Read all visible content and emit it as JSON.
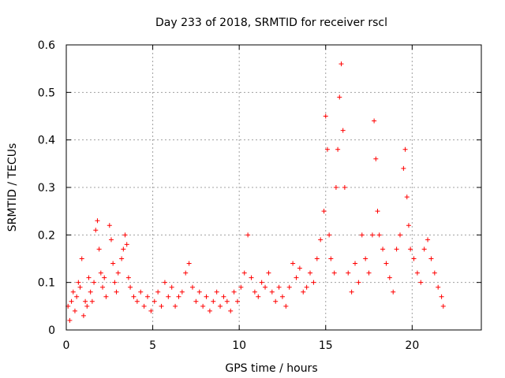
{
  "chart_data": {
    "type": "scatter",
    "title": "Day 233 of 2018, SRMTID for receiver rscl",
    "xlabel": "GPS time / hours",
    "ylabel": "SRMTID / TECUs",
    "xlim": [
      0,
      24
    ],
    "ylim": [
      0,
      0.6
    ],
    "xticks": [
      0,
      5,
      10,
      15,
      20
    ],
    "yticks": [
      0,
      0.1,
      0.2,
      0.3,
      0.4,
      0.5,
      0.6
    ],
    "xtick_labels": [
      "0",
      "5",
      "10",
      "15",
      "20"
    ],
    "ytick_labels": [
      "0",
      "0.1",
      "0.2",
      "0.3",
      "0.4",
      "0.5",
      "0.6"
    ],
    "grid": true,
    "marker": "+",
    "color": "#ff0000",
    "series": [
      {
        "name": "SRMTID",
        "points": [
          [
            0.1,
            0.05
          ],
          [
            0.2,
            0.02
          ],
          [
            0.3,
            0.06
          ],
          [
            0.4,
            0.08
          ],
          [
            0.5,
            0.04
          ],
          [
            0.6,
            0.07
          ],
          [
            0.7,
            0.1
          ],
          [
            0.8,
            0.09
          ],
          [
            0.9,
            0.15
          ],
          [
            1.0,
            0.03
          ],
          [
            1.1,
            0.06
          ],
          [
            1.2,
            0.05
          ],
          [
            1.3,
            0.11
          ],
          [
            1.4,
            0.08
          ],
          [
            1.5,
            0.06
          ],
          [
            1.6,
            0.1
          ],
          [
            1.7,
            0.21
          ],
          [
            1.8,
            0.23
          ],
          [
            1.9,
            0.17
          ],
          [
            2.0,
            0.12
          ],
          [
            2.1,
            0.09
          ],
          [
            2.2,
            0.11
          ],
          [
            2.3,
            0.07
          ],
          [
            2.5,
            0.22
          ],
          [
            2.6,
            0.19
          ],
          [
            2.7,
            0.14
          ],
          [
            2.8,
            0.1
          ],
          [
            2.9,
            0.08
          ],
          [
            3.0,
            0.12
          ],
          [
            3.2,
            0.15
          ],
          [
            3.3,
            0.17
          ],
          [
            3.4,
            0.2
          ],
          [
            3.5,
            0.18
          ],
          [
            3.6,
            0.11
          ],
          [
            3.7,
            0.09
          ],
          [
            3.9,
            0.07
          ],
          [
            4.1,
            0.06
          ],
          [
            4.3,
            0.08
          ],
          [
            4.5,
            0.05
          ],
          [
            4.7,
            0.07
          ],
          [
            4.9,
            0.04
          ],
          [
            5.1,
            0.06
          ],
          [
            5.3,
            0.08
          ],
          [
            5.5,
            0.05
          ],
          [
            5.7,
            0.1
          ],
          [
            5.9,
            0.07
          ],
          [
            6.1,
            0.09
          ],
          [
            6.3,
            0.05
          ],
          [
            6.5,
            0.07
          ],
          [
            6.7,
            0.08
          ],
          [
            6.9,
            0.12
          ],
          [
            7.1,
            0.14
          ],
          [
            7.3,
            0.09
          ],
          [
            7.5,
            0.06
          ],
          [
            7.7,
            0.08
          ],
          [
            7.9,
            0.05
          ],
          [
            8.1,
            0.07
          ],
          [
            8.3,
            0.04
          ],
          [
            8.5,
            0.06
          ],
          [
            8.7,
            0.08
          ],
          [
            8.9,
            0.05
          ],
          [
            9.1,
            0.07
          ],
          [
            9.3,
            0.06
          ],
          [
            9.5,
            0.04
          ],
          [
            9.7,
            0.08
          ],
          [
            9.9,
            0.06
          ],
          [
            10.1,
            0.09
          ],
          [
            10.3,
            0.12
          ],
          [
            10.5,
            0.2
          ],
          [
            10.7,
            0.11
          ],
          [
            10.9,
            0.08
          ],
          [
            11.1,
            0.07
          ],
          [
            11.3,
            0.1
          ],
          [
            11.5,
            0.09
          ],
          [
            11.7,
            0.12
          ],
          [
            11.9,
            0.08
          ],
          [
            12.1,
            0.06
          ],
          [
            12.3,
            0.09
          ],
          [
            12.5,
            0.07
          ],
          [
            12.7,
            0.05
          ],
          [
            12.9,
            0.09
          ],
          [
            13.1,
            0.14
          ],
          [
            13.3,
            0.11
          ],
          [
            13.5,
            0.13
          ],
          [
            13.7,
            0.08
          ],
          [
            13.9,
            0.09
          ],
          [
            14.1,
            0.12
          ],
          [
            14.3,
            0.1
          ],
          [
            14.5,
            0.15
          ],
          [
            14.7,
            0.19
          ],
          [
            14.9,
            0.25
          ],
          [
            15.0,
            0.45
          ],
          [
            15.1,
            0.38
          ],
          [
            15.2,
            0.2
          ],
          [
            15.3,
            0.15
          ],
          [
            15.5,
            0.12
          ],
          [
            15.6,
            0.3
          ],
          [
            15.7,
            0.38
          ],
          [
            15.8,
            0.49
          ],
          [
            15.9,
            0.56
          ],
          [
            16.0,
            0.42
          ],
          [
            16.1,
            0.3
          ],
          [
            16.3,
            0.12
          ],
          [
            16.5,
            0.08
          ],
          [
            16.7,
            0.14
          ],
          [
            16.9,
            0.1
          ],
          [
            17.1,
            0.2
          ],
          [
            17.3,
            0.15
          ],
          [
            17.5,
            0.12
          ],
          [
            17.7,
            0.2
          ],
          [
            17.8,
            0.44
          ],
          [
            17.9,
            0.36
          ],
          [
            18.0,
            0.25
          ],
          [
            18.1,
            0.2
          ],
          [
            18.3,
            0.17
          ],
          [
            18.5,
            0.14
          ],
          [
            18.7,
            0.11
          ],
          [
            18.9,
            0.08
          ],
          [
            19.1,
            0.17
          ],
          [
            19.3,
            0.2
          ],
          [
            19.5,
            0.34
          ],
          [
            19.6,
            0.38
          ],
          [
            19.7,
            0.28
          ],
          [
            19.8,
            0.22
          ],
          [
            19.9,
            0.17
          ],
          [
            20.1,
            0.15
          ],
          [
            20.3,
            0.12
          ],
          [
            20.5,
            0.1
          ],
          [
            20.7,
            0.17
          ],
          [
            20.9,
            0.19
          ],
          [
            21.1,
            0.15
          ],
          [
            21.3,
            0.12
          ],
          [
            21.5,
            0.09
          ],
          [
            21.7,
            0.07
          ],
          [
            21.8,
            0.05
          ]
        ]
      }
    ]
  }
}
